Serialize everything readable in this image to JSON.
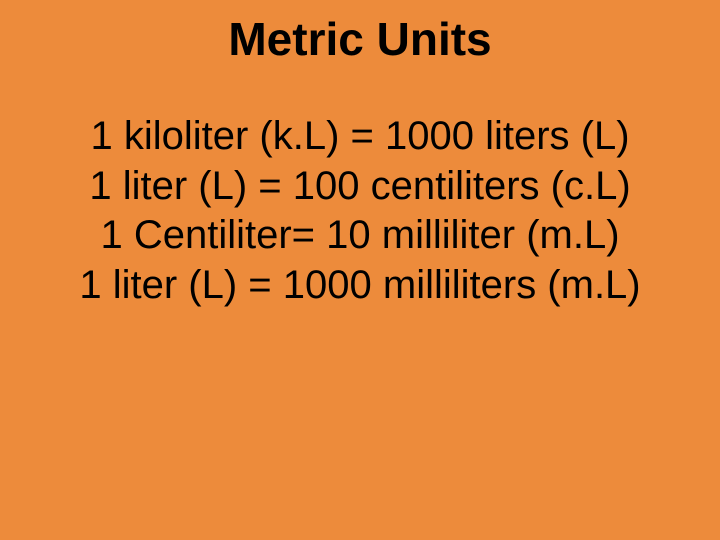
{
  "slide": {
    "background_color": "#ed8b3b",
    "text_color": "#000000",
    "font_family": "Comic Sans MS",
    "title": {
      "text": "Metric Units",
      "fontsize": 46,
      "weight": "bold",
      "align": "center"
    },
    "lines": [
      "1 kiloliter (k.L) = 1000 liters (L)",
      "1 liter (L) = 100 centiliters (c.L)",
      "1 Centiliter= 10 milliliter (m.L)",
      "1 liter (L) = 1000 milliliters (m.L)"
    ],
    "body_fontsize": 40
  }
}
